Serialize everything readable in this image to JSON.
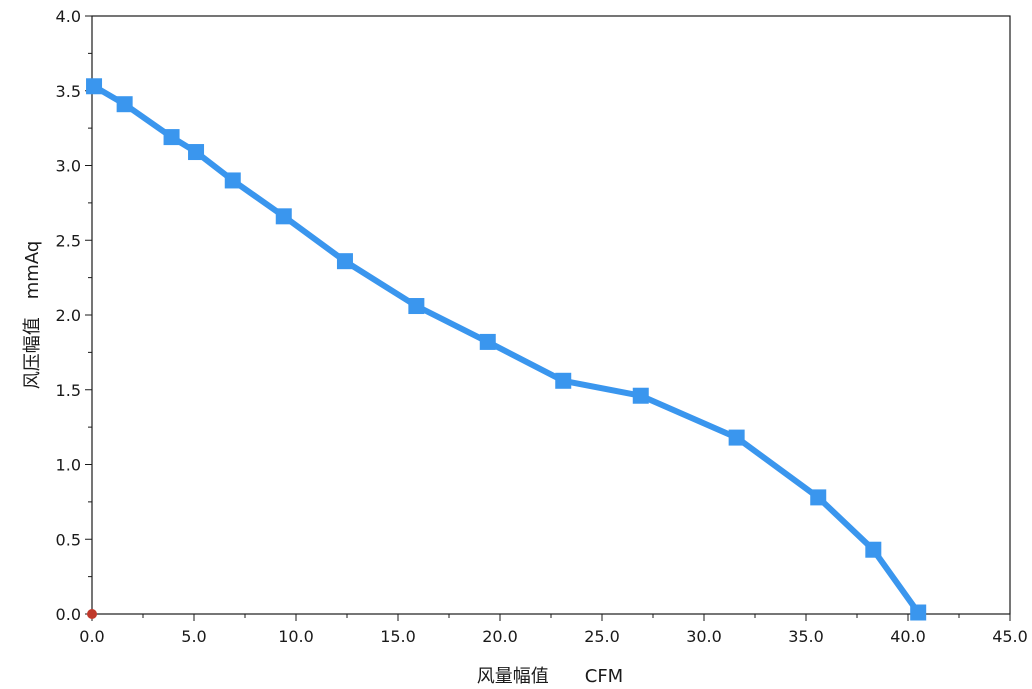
{
  "chart_data": {
    "type": "line",
    "title": "",
    "xlabel": "风量幅值　　CFM",
    "ylabel": "风压幅值　mmAq",
    "xlim": [
      0,
      45
    ],
    "ylim": [
      0,
      4
    ],
    "x_ticks": [
      "0.0",
      "5.0",
      "10.0",
      "15.0",
      "20.0",
      "25.0",
      "30.0",
      "35.0",
      "40.0",
      "45.0"
    ],
    "y_ticks": [
      "0.0",
      "0.5",
      "1.0",
      "1.5",
      "2.0",
      "2.5",
      "3.0",
      "3.5",
      "4.0"
    ],
    "grid": false,
    "series": [
      {
        "color": "#3a96ee",
        "marker": "square",
        "x": [
          0.1,
          1.6,
          3.9,
          5.1,
          6.9,
          9.4,
          12.4,
          15.9,
          19.4,
          23.1,
          26.9,
          31.6,
          35.6,
          38.3,
          40.5
        ],
        "y": [
          3.53,
          3.41,
          3.19,
          3.09,
          2.9,
          2.66,
          2.36,
          2.06,
          1.82,
          1.56,
          1.46,
          1.18,
          0.78,
          0.43,
          0.01
        ]
      }
    ],
    "annotations": [
      {
        "type": "point",
        "x": 0,
        "y": 0,
        "color": "#c0392b"
      }
    ]
  }
}
